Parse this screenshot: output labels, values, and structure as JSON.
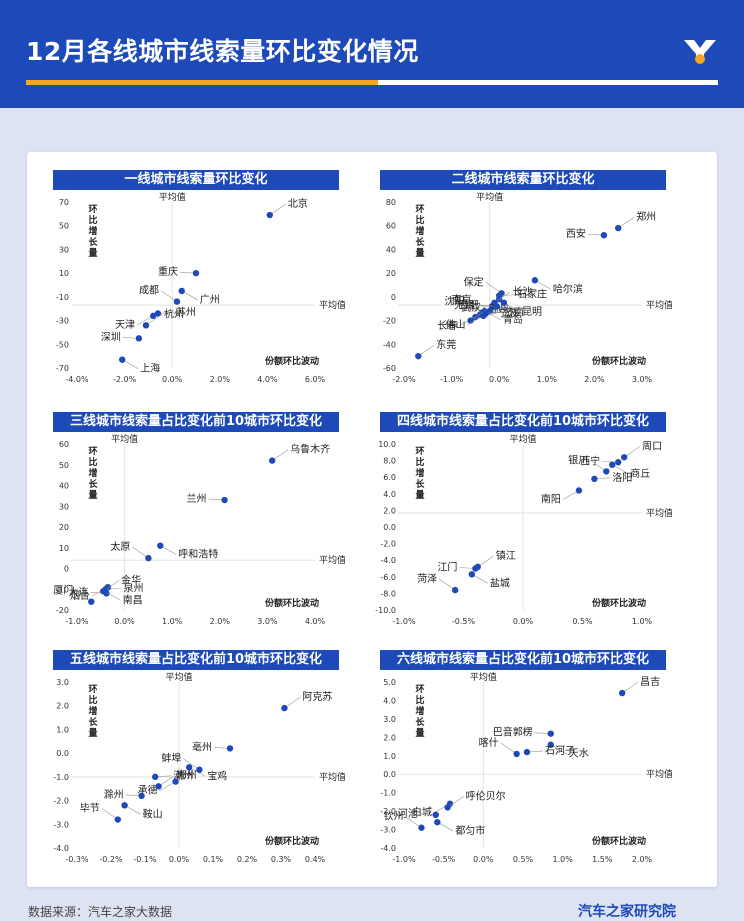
{
  "header": {
    "title": "12月各线城市线索量环比变化情况"
  },
  "footer": {
    "source": "数据来源：汽车之家大数据",
    "brand": "汽车之家研究院"
  },
  "colors": {
    "primary": "#1d4ab8",
    "accent": "#f5a623",
    "point": "#1d4ab8"
  },
  "chart_data": [
    {
      "type": "scatter",
      "title": "一线城市线索量环比变化",
      "xlabel": "份额环比波动",
      "ylabel": "环比增长量",
      "avg_x_label": "平均值",
      "avg_y_label": "平均值",
      "xlim": [
        -4.0,
        6.0
      ],
      "ylim": [
        -70,
        70
      ],
      "xticks": [
        "-4.0%",
        "-2.0%",
        "0.0%",
        "2.0%",
        "4.0%",
        "6.0%"
      ],
      "yticks": [
        "-70",
        "-50",
        "-30",
        "-10",
        "10",
        "30",
        "50",
        "70"
      ],
      "avg_x": 0.0,
      "avg_y": -17,
      "points": [
        {
          "label": "北京",
          "x": 4.1,
          "y": 59
        },
        {
          "label": "重庆",
          "x": 1.0,
          "y": 10
        },
        {
          "label": "广州",
          "x": 0.4,
          "y": -5
        },
        {
          "label": "成都",
          "x": 0.2,
          "y": -14
        },
        {
          "label": "苏州",
          "x": -0.6,
          "y": -24
        },
        {
          "label": "天津",
          "x": -0.8,
          "y": -26
        },
        {
          "label": "杭州",
          "x": -1.1,
          "y": -34
        },
        {
          "label": "深圳",
          "x": -1.4,
          "y": -45
        },
        {
          "label": "上海",
          "x": -2.1,
          "y": -63
        }
      ]
    },
    {
      "type": "scatter",
      "title": "二线城市线索量环比变化",
      "xlabel": "份额环比波动",
      "ylabel": "环比增长量",
      "avg_x_label": "平均值",
      "avg_y_label": "平均值",
      "xlim": [
        -2.0,
        3.0
      ],
      "ylim": [
        -60,
        80
      ],
      "xticks": [
        "-2.0%",
        "-1.0%",
        "0.0%",
        "1.0%",
        "2.0%",
        "3.0%"
      ],
      "yticks": [
        "-60",
        "-40",
        "-20",
        "0",
        "20",
        "40",
        "60",
        "80"
      ],
      "avg_x": -0.2,
      "avg_y": -7,
      "points": [
        {
          "label": "郑州",
          "x": 2.5,
          "y": 58
        },
        {
          "label": "西安",
          "x": 2.2,
          "y": 52
        },
        {
          "label": "哈尔滨",
          "x": 0.75,
          "y": 14
        },
        {
          "label": "保定",
          "x": 0.05,
          "y": 3
        },
        {
          "label": "石家庄",
          "x": 0.0,
          "y": 1
        },
        {
          "label": "武汉",
          "x": 0.0,
          "y": -2
        },
        {
          "label": "长沙",
          "x": -0.1,
          "y": -5
        },
        {
          "label": "无锡",
          "x": -0.15,
          "y": -8
        },
        {
          "label": "青岛",
          "x": -0.3,
          "y": -12
        },
        {
          "label": "沈阳",
          "x": -0.35,
          "y": -13
        },
        {
          "label": "宁波",
          "x": -0.4,
          "y": -15
        },
        {
          "label": "长春",
          "x": -0.5,
          "y": -17
        },
        {
          "label": "温州",
          "x": -0.6,
          "y": -20
        },
        {
          "label": "合肥",
          "x": -0.05,
          "y": -8
        },
        {
          "label": "昆明",
          "x": 0.1,
          "y": -5
        },
        {
          "label": "南京",
          "x": -0.2,
          "y": -12
        },
        {
          "label": "济南",
          "x": -0.28,
          "y": -14
        },
        {
          "label": "佛山",
          "x": -0.33,
          "y": -16
        },
        {
          "label": "东莞",
          "x": -1.7,
          "y": -50
        }
      ]
    },
    {
      "type": "scatter",
      "title": "三线城市线索量占比变化前10城市环比变化",
      "xlabel": "份额环比波动",
      "ylabel": "环比增长量",
      "avg_x_label": "平均值",
      "avg_y_label": "平均值",
      "xlim": [
        -1.0,
        4.0
      ],
      "ylim": [
        -20,
        60
      ],
      "xticks": [
        "-1.0%",
        "0.0%",
        "1.0%",
        "2.0%",
        "3.0%",
        "4.0%"
      ],
      "yticks": [
        "-20",
        "-10",
        "0",
        "10",
        "20",
        "30",
        "40",
        "50",
        "60"
      ],
      "avg_x": 0.0,
      "avg_y": 4,
      "points": [
        {
          "label": "乌鲁木齐",
          "x": 3.1,
          "y": 52
        },
        {
          "label": "兰州",
          "x": 2.1,
          "y": 33
        },
        {
          "label": "呼和浩特",
          "x": 0.75,
          "y": 11
        },
        {
          "label": "太原",
          "x": 0.5,
          "y": 5
        },
        {
          "label": "泉州",
          "x": -0.4,
          "y": -10
        },
        {
          "label": "烟台",
          "x": -0.35,
          "y": -9
        },
        {
          "label": "金华",
          "x": -0.45,
          "y": -11
        },
        {
          "label": "大连",
          "x": -0.38,
          "y": -12
        },
        {
          "label": "南昌",
          "x": -0.42,
          "y": -11
        },
        {
          "label": "厦门",
          "x": -0.7,
          "y": -16
        }
      ]
    },
    {
      "type": "scatter",
      "title": "四线城市线索量占比变化前10城市环比变化",
      "xlabel": "份额环比波动",
      "ylabel": "环比增长量",
      "avg_x_label": "平均值",
      "avg_y_label": "平均值",
      "xlim": [
        -1.0,
        1.0
      ],
      "ylim": [
        -10.0,
        10.0
      ],
      "xticks": [
        "-1.0%",
        "-0.5%",
        "0.0%",
        "0.5%",
        "1.0%"
      ],
      "yticks": [
        "-10.0",
        "-8.0",
        "-6.0",
        "-4.0",
        "-2.0",
        "0.0",
        "2.0",
        "4.0",
        "6.0",
        "8.0",
        "10.0"
      ],
      "avg_x": 0.0,
      "avg_y": 1.7,
      "points": [
        {
          "label": "周口",
          "x": 0.85,
          "y": 8.4
        },
        {
          "label": "西宁",
          "x": 0.8,
          "y": 7.8
        },
        {
          "label": "商丘",
          "x": 0.75,
          "y": 7.5
        },
        {
          "label": "银川",
          "x": 0.7,
          "y": 6.7
        },
        {
          "label": "洛阳",
          "x": 0.6,
          "y": 5.8
        },
        {
          "label": "南阳",
          "x": 0.47,
          "y": 4.4
        },
        {
          "label": "镇江",
          "x": -0.38,
          "y": -4.8
        },
        {
          "label": "江门",
          "x": -0.4,
          "y": -5.0
        },
        {
          "label": "盐城",
          "x": -0.43,
          "y": -5.7
        },
        {
          "label": "菏泽",
          "x": -0.57,
          "y": -7.6
        }
      ]
    },
    {
      "type": "scatter",
      "title": "五线城市线索量占比变化前10城市环比变化",
      "xlabel": "份额环比波动",
      "ylabel": "环比增长量",
      "avg_x_label": "平均值",
      "avg_y_label": "平均值",
      "xlim": [
        -0.3,
        0.4
      ],
      "ylim": [
        -4.0,
        3.0
      ],
      "xticks": [
        "-0.3%",
        "-0.2%",
        "-0.1%",
        "0.0%",
        "0.1%",
        "0.2%",
        "0.3%",
        "0.4%"
      ],
      "yticks": [
        "-4.0",
        "-3.0",
        "-2.0",
        "-1.0",
        "0.0",
        "1.0",
        "2.0",
        "3.0"
      ],
      "avg_x": 0.0,
      "avg_y": -1.0,
      "points": [
        {
          "label": "阿克苏",
          "x": 0.31,
          "y": 1.9
        },
        {
          "label": "亳州",
          "x": 0.15,
          "y": 0.2
        },
        {
          "label": "宝鸡",
          "x": 0.03,
          "y": -0.6
        },
        {
          "label": "蚌埠",
          "x": 0.06,
          "y": -0.7
        },
        {
          "label": "潮州",
          "x": -0.07,
          "y": -1.0
        },
        {
          "label": "承德",
          "x": -0.01,
          "y": -1.2
        },
        {
          "label": "郴州",
          "x": -0.06,
          "y": -1.4
        },
        {
          "label": "滁州",
          "x": -0.11,
          "y": -1.8
        },
        {
          "label": "鞍山",
          "x": -0.16,
          "y": -2.2
        },
        {
          "label": "毕节",
          "x": -0.18,
          "y": -2.8
        }
      ]
    },
    {
      "type": "scatter",
      "title": "六线城市线索量占比变化前10城市环比变化",
      "xlabel": "份额环比波动",
      "ylabel": "环比增长量",
      "avg_x_label": "平均值",
      "avg_y_label": "平均值",
      "xlim": [
        -1.0,
        2.0
      ],
      "ylim": [
        -4.0,
        5.0
      ],
      "xticks": [
        "-1.0%",
        "-0.5%",
        "0.0%",
        "0.5%",
        "1.0%",
        "1.5%",
        "2.0%"
      ],
      "yticks": [
        "-4.0",
        "-3.0",
        "-2.0",
        "-1.0",
        "0.0",
        "1.0",
        "2.0",
        "3.0",
        "4.0",
        "5.0"
      ],
      "avg_x": 0.0,
      "avg_y": 0.0,
      "points": [
        {
          "label": "昌吉",
          "x": 1.75,
          "y": 4.4
        },
        {
          "label": "巴音郭楞",
          "x": 0.85,
          "y": 2.2
        },
        {
          "label": "天水",
          "x": 0.85,
          "y": 1.6
        },
        {
          "label": "喀什",
          "x": 0.42,
          "y": 1.1
        },
        {
          "label": "石河子",
          "x": 0.55,
          "y": 1.2
        },
        {
          "label": "白城",
          "x": -0.42,
          "y": -1.6
        },
        {
          "label": "呼伦贝尔",
          "x": -0.45,
          "y": -1.8
        },
        {
          "label": "河池",
          "x": -0.6,
          "y": -2.2
        },
        {
          "label": "都匀市",
          "x": -0.58,
          "y": -2.6
        },
        {
          "label": "钦州",
          "x": -0.78,
          "y": -2.9
        }
      ]
    }
  ]
}
